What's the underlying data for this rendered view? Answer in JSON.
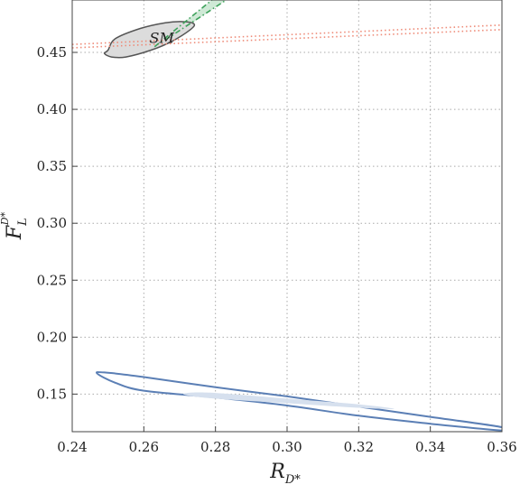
{
  "chart_data": {
    "type": "contour",
    "xlabel_main": "R",
    "xlabel_sub": "D*",
    "ylabel_main": "F",
    "ylabel_sub": "L",
    "ylabel_sup": "D*",
    "xlim": [
      0.24,
      0.36
    ],
    "ylim": [
      0.117,
      0.496
    ],
    "grid": true,
    "grid_style": "dotted",
    "x_ticks": [
      0.24,
      0.26,
      0.28,
      0.3,
      0.32,
      0.34,
      0.36
    ],
    "x_tick_labels": [
      "0.24",
      "0.26",
      "0.28",
      "0.30",
      "0.32",
      "0.34",
      "0.36"
    ],
    "y_ticks": [
      0.15,
      0.2,
      0.25,
      0.3,
      0.35,
      0.4,
      0.45
    ],
    "y_tick_labels": [
      "0.15",
      "0.20",
      "0.25",
      "0.30",
      "0.35",
      "0.40",
      "0.45"
    ],
    "annotations": [
      {
        "text": "SM",
        "x": 0.265,
        "y": 0.4625
      }
    ],
    "regions": [
      {
        "id": "sm-ellipse",
        "style": "filled-outline",
        "fill": "#dcdcdc",
        "stroke": "#555555",
        "center": [
          0.2615,
          0.4615
        ],
        "points": [
          [
            0.25,
            0.452
          ],
          [
            0.249,
            0.449
          ],
          [
            0.251,
            0.446
          ],
          [
            0.255,
            0.446
          ],
          [
            0.262,
            0.452
          ],
          [
            0.268,
            0.46
          ],
          [
            0.273,
            0.47
          ],
          [
            0.274,
            0.475
          ],
          [
            0.271,
            0.477
          ],
          [
            0.266,
            0.476
          ],
          [
            0.259,
            0.471
          ],
          [
            0.252,
            0.462
          ]
        ]
      },
      {
        "id": "blue-contour-outer",
        "style": "outline",
        "stroke": "#5b7fb5",
        "points": [
          [
            0.247,
            0.168
          ],
          [
            0.249,
            0.169
          ],
          [
            0.26,
            0.165
          ],
          [
            0.28,
            0.156
          ],
          [
            0.3,
            0.148
          ],
          [
            0.32,
            0.139
          ],
          [
            0.34,
            0.13
          ],
          [
            0.36,
            0.121
          ],
          [
            0.36,
            0.118
          ],
          [
            0.34,
            0.124
          ],
          [
            0.32,
            0.131
          ],
          [
            0.3,
            0.14
          ],
          [
            0.28,
            0.147
          ],
          [
            0.26,
            0.153
          ],
          [
            0.252,
            0.16
          ]
        ]
      },
      {
        "id": "blue-contour-inner",
        "style": "filled",
        "fill": "#d6e0ee",
        "points": [
          [
            0.272,
            0.151
          ],
          [
            0.28,
            0.151
          ],
          [
            0.3,
            0.146
          ],
          [
            0.32,
            0.141
          ],
          [
            0.33,
            0.137
          ],
          [
            0.32,
            0.138
          ],
          [
            0.3,
            0.142
          ],
          [
            0.28,
            0.146
          ],
          [
            0.272,
            0.149
          ]
        ]
      }
    ],
    "lines": [
      {
        "id": "red-dotted-upper",
        "style": "dotted",
        "color": "#ee8a77",
        "x": [
          0.24,
          0.36
        ],
        "y": [
          0.457,
          0.474
        ]
      },
      {
        "id": "red-dotted-lower",
        "style": "dotted",
        "color": "#ee8a77",
        "x": [
          0.24,
          0.36
        ],
        "y": [
          0.454,
          0.47
        ]
      },
      {
        "id": "green-dashdot-left",
        "style": "dash-dot",
        "color": "#3da15a",
        "x": [
          0.263,
          0.279
        ],
        "y": [
          0.455,
          0.496
        ]
      },
      {
        "id": "green-dashdot-right",
        "style": "dash-dot",
        "color": "#3da15a",
        "x": [
          0.266,
          0.283
        ],
        "y": [
          0.461,
          0.496
        ]
      }
    ],
    "bands": [
      {
        "id": "green-band-fill",
        "fill": "#cfe9d6",
        "points": [
          [
            0.263,
            0.456
          ],
          [
            0.279,
            0.496
          ],
          [
            0.283,
            0.496
          ],
          [
            0.266,
            0.46
          ]
        ]
      }
    ]
  }
}
